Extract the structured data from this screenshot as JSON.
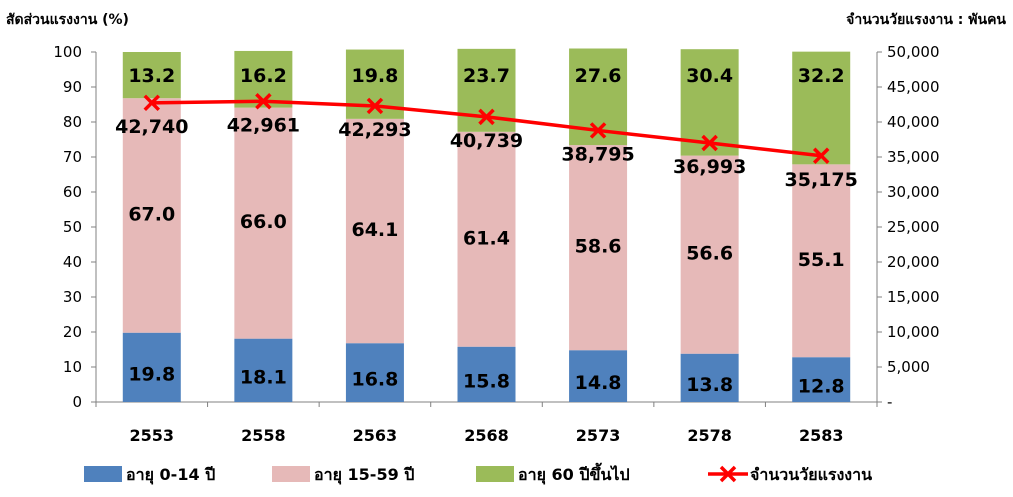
{
  "chart_data": {
    "type": "bar",
    "stacked": true,
    "ylabel": "สัดส่วนแรงงาน (%)",
    "y2label": "จำนวนวัยแรงงาน : พันคน",
    "ylim": [
      0,
      100
    ],
    "y2lim": [
      0,
      50000
    ],
    "yticks": [
      "0",
      "10",
      "20",
      "30",
      "40",
      "50",
      "60",
      "70",
      "80",
      "90",
      "100"
    ],
    "y2ticks": [
      "-",
      "5,000",
      "10,000",
      "15,000",
      "20,000",
      "25,000",
      "30,000",
      "35,000",
      "40,000",
      "45,000",
      "50,000"
    ],
    "categories": [
      "2553",
      "2558",
      "2563",
      "2568",
      "2573",
      "2578",
      "2583"
    ],
    "series": [
      {
        "name": "อายุ 0-14 ปี",
        "color": "#4f81bd",
        "values": [
          19.8,
          18.1,
          16.8,
          15.8,
          14.8,
          13.8,
          12.8
        ],
        "labels": [
          "19.8",
          "18.1",
          "16.8",
          "15.8",
          "14.8",
          "13.8",
          "12.8"
        ]
      },
      {
        "name": "อายุ 15-59 ปี",
        "color": "#e6b9b8",
        "values": [
          67.0,
          66.0,
          64.1,
          61.4,
          58.6,
          56.6,
          55.1
        ],
        "labels": [
          "67.0",
          "66.0",
          "64.1",
          "61.4",
          "58.6",
          "56.6",
          "55.1"
        ]
      },
      {
        "name": "อายุ 60 ปีขึ้นไป",
        "color": "#9bbb59",
        "values": [
          13.2,
          16.2,
          19.8,
          23.7,
          27.6,
          30.4,
          32.2
        ],
        "labels": [
          "13.2",
          "16.2",
          "19.8",
          "23.7",
          "27.6",
          "30.4",
          "32.2"
        ]
      }
    ],
    "line": {
      "name": "จำนวนวัยแรงงาน",
      "axis": "right",
      "color": "#ff0000",
      "values": [
        42740,
        42961,
        42293,
        40739,
        38795,
        36993,
        35175
      ],
      "labels": [
        "42,740",
        "42,961",
        "42,293",
        "40,739",
        "38,795",
        "36,993",
        "35,175"
      ]
    },
    "legend": "bottom",
    "grid": false
  }
}
